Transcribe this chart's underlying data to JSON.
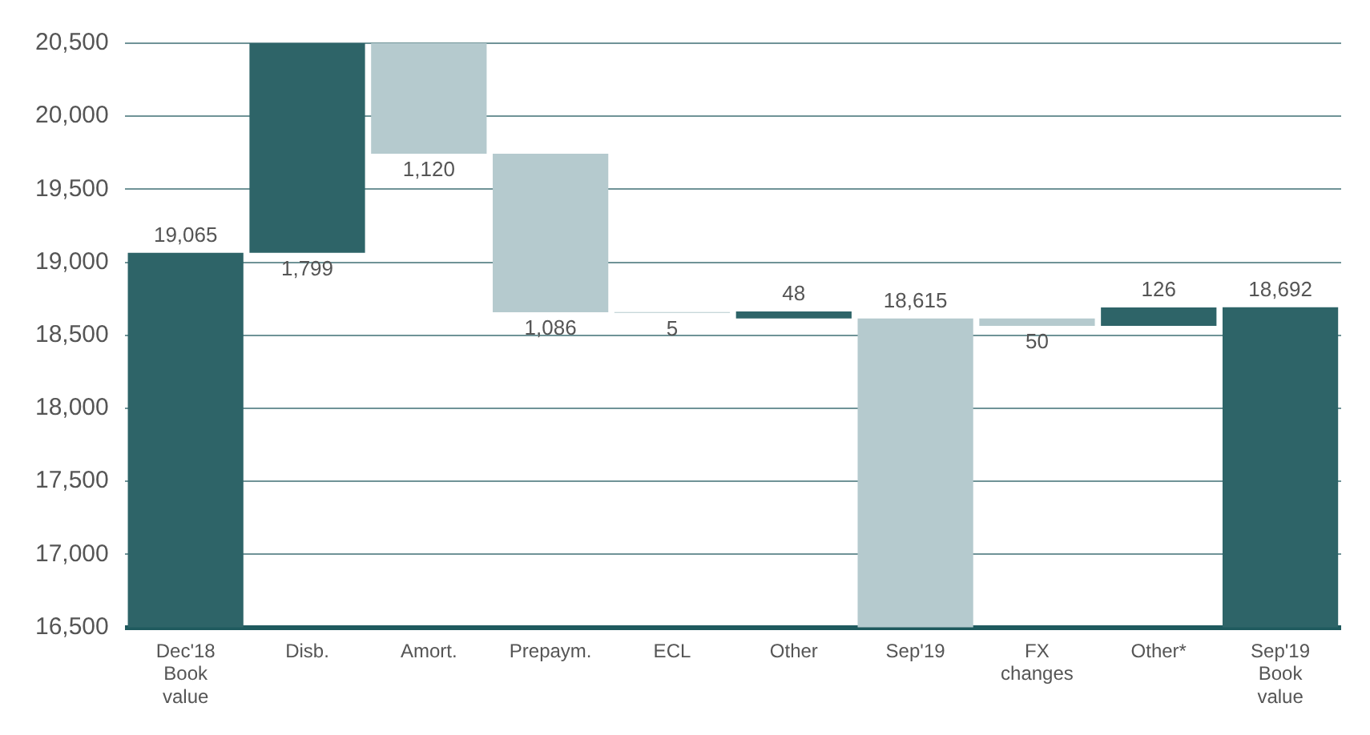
{
  "chart_data": {
    "type": "bar",
    "categories": [
      "Dec'18 Book value",
      "Disb.",
      "Amort.",
      "Prepaym.",
      "ECL",
      "Other",
      "Sep'19",
      "FX changes",
      "Other*",
      "Sep'19 Book value"
    ],
    "base": [
      0,
      19065,
      20864,
      19744,
      18659,
      18615,
      0,
      18615,
      18565,
      0
    ],
    "values": [
      19065,
      1799,
      -1120,
      -1086,
      -5,
      48,
      18615,
      -50,
      126,
      18692
    ],
    "colors": [
      "#2e6468",
      "#2e6468",
      "#b5cace",
      "#b5cace",
      "#b5cace",
      "#2e6468",
      "#b5cace",
      "#b5cace",
      "#2e6468",
      "#2e6468"
    ],
    "value_labels": [
      "19,065",
      "1,799",
      "1,120",
      "1,086",
      "5",
      "48",
      "18,615",
      "50",
      "126",
      "18,692"
    ],
    "ylim": [
      16500,
      20500
    ],
    "yticks": [
      {
        "value": 16500,
        "label": "16,500"
      },
      {
        "value": 17000,
        "label": "17,000"
      },
      {
        "value": 17500,
        "label": "17,500"
      },
      {
        "value": 18000,
        "label": "18,000"
      },
      {
        "value": 18500,
        "label": "18,500"
      },
      {
        "value": 19000,
        "label": "19,000"
      },
      {
        "value": 19500,
        "label": "19,500"
      },
      {
        "value": 20000,
        "label": "20,000"
      },
      {
        "value": 20500,
        "label": "20,500"
      }
    ],
    "grid": "y",
    "legend": false
  }
}
